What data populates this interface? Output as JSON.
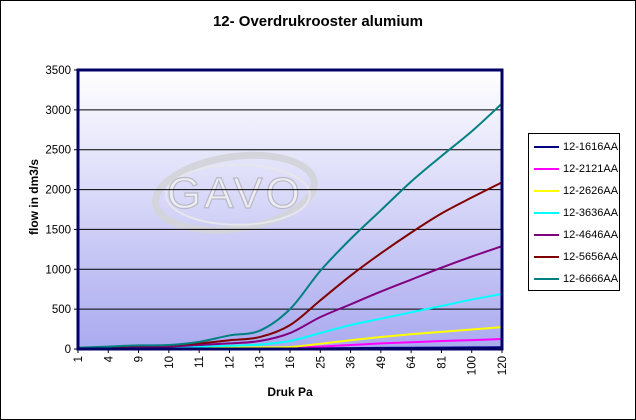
{
  "chart_data": {
    "type": "line",
    "title": "12- Overdrukrooster alumium",
    "xlabel": "Druk Pa",
    "ylabel": "flow in dm3/s",
    "x": [
      "1",
      "4",
      "9",
      "10",
      "11",
      "12",
      "13",
      "16",
      "25",
      "36",
      "49",
      "64",
      "81",
      "100",
      "120"
    ],
    "ylim": [
      0,
      3500
    ],
    "yticks": [
      "0",
      "500",
      "1000",
      "1500",
      "2000",
      "2500",
      "3000",
      "3500"
    ],
    "grid": true,
    "legend_position": "right",
    "watermark": "GAVO",
    "series": [
      {
        "name": "12-1616AA",
        "color": "#000080",
        "values": [
          0,
          2,
          4,
          4,
          5,
          5,
          6,
          7,
          9,
          11,
          14,
          16,
          18,
          20,
          22
        ]
      },
      {
        "name": "12-2121AA",
        "color": "#ff00ff",
        "values": [
          1,
          5,
          8,
          9,
          10,
          11,
          12,
          15,
          30,
          50,
          70,
          85,
          100,
          112,
          125
        ]
      },
      {
        "name": "12-2626AA",
        "color": "#ffff00",
        "values": [
          2,
          7,
          12,
          13,
          15,
          17,
          20,
          25,
          65,
          110,
          150,
          185,
          215,
          245,
          275
        ]
      },
      {
        "name": "12-3636AA",
        "color": "#00ffff",
        "values": [
          3,
          12,
          20,
          22,
          30,
          40,
          55,
          100,
          200,
          300,
          380,
          460,
          540,
          620,
          690
        ]
      },
      {
        "name": "12-4646AA",
        "color": "#800080",
        "values": [
          5,
          20,
          30,
          32,
          50,
          70,
          100,
          200,
          400,
          560,
          720,
          870,
          1020,
          1160,
          1290
        ]
      },
      {
        "name": "12-5656AA",
        "color": "#800000",
        "values": [
          10,
          25,
          40,
          45,
          70,
          110,
          150,
          300,
          610,
          920,
          1200,
          1460,
          1700,
          1900,
          2090
        ]
      },
      {
        "name": "12-6666AA",
        "color": "#008080",
        "values": [
          15,
          30,
          45,
          50,
          90,
          170,
          230,
          500,
          980,
          1380,
          1740,
          2100,
          2420,
          2730,
          3080
        ]
      }
    ]
  }
}
